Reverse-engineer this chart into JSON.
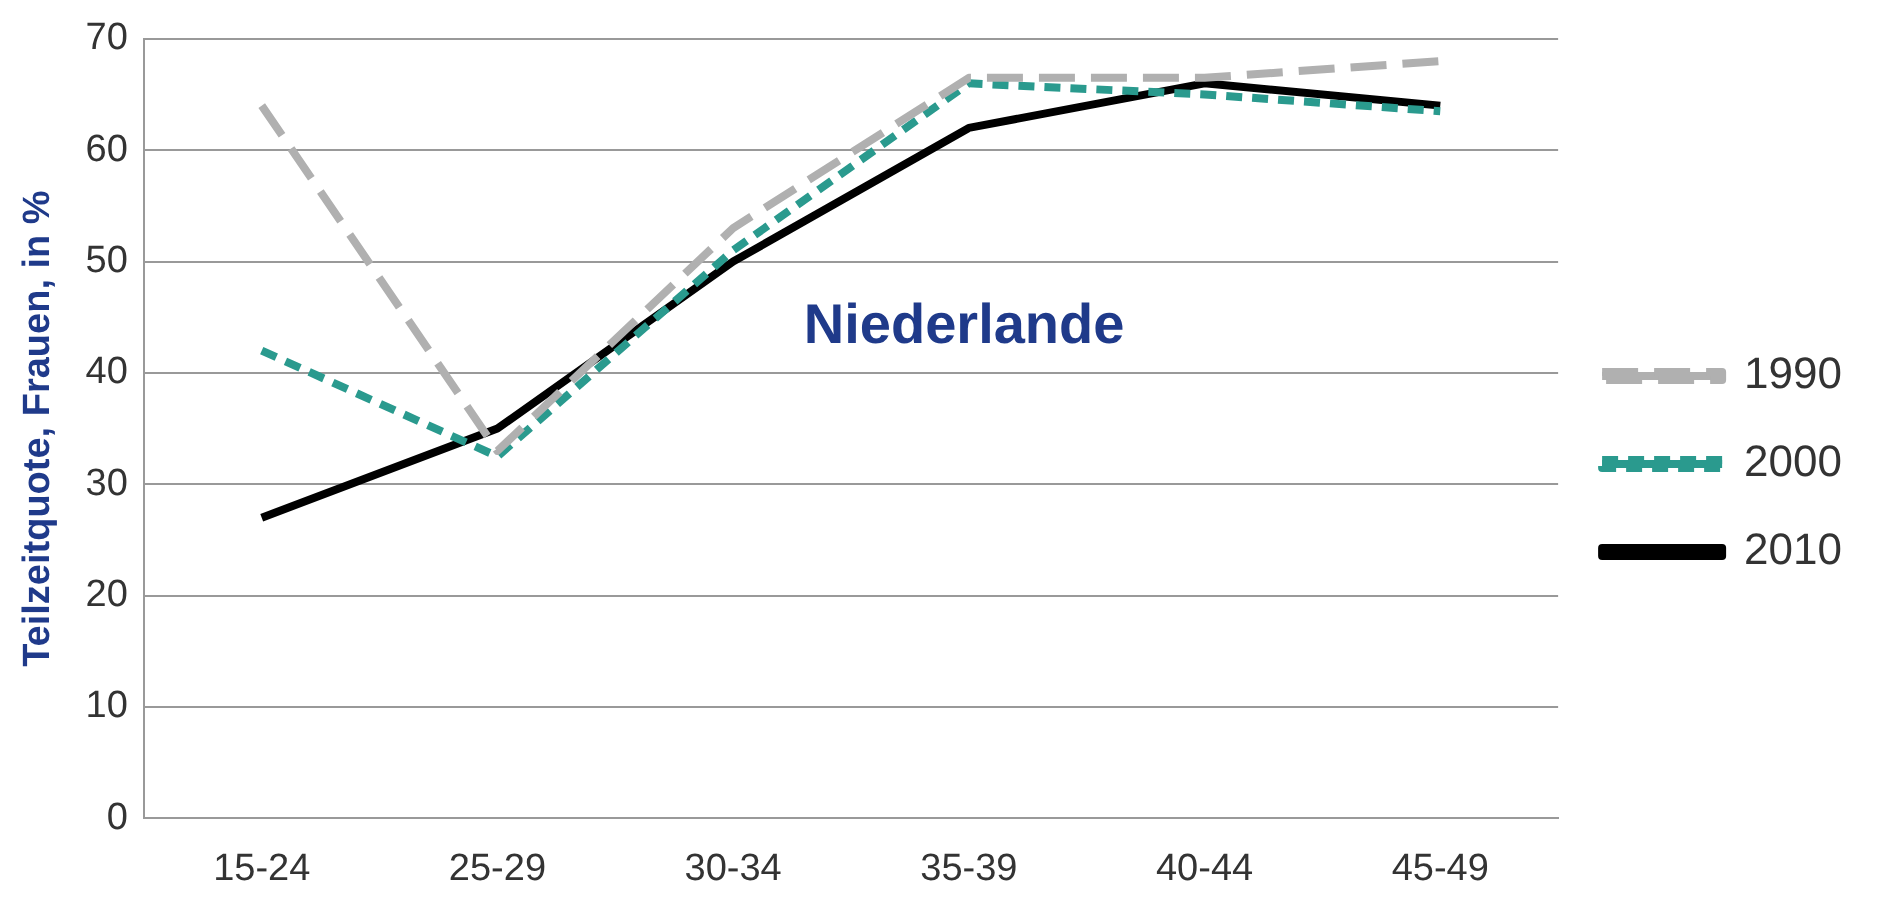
{
  "chart_data": {
    "type": "line",
    "ylabel": "Teilzeitquote, Frauen, in %",
    "categories": [
      "15-24",
      "25-29",
      "30-34",
      "35-39",
      "40-44",
      "45-49"
    ],
    "series": [
      {
        "name": "1990",
        "color": "#b0b0b0",
        "line_style": "dashed",
        "values": [
          64,
          33,
          53,
          66.5,
          66.5,
          68
        ]
      },
      {
        "name": "2000",
        "color": "#2a9a8e",
        "line_style": "dotted",
        "values": [
          42,
          32.5,
          51,
          66,
          65,
          63.5
        ]
      },
      {
        "name": "2010",
        "color": "#000000",
        "line_style": "solid",
        "values": [
          27,
          35,
          50,
          62,
          66,
          64
        ]
      }
    ],
    "ylim": [
      0,
      70
    ],
    "yticks": [
      0,
      10,
      20,
      30,
      40,
      50,
      60,
      70
    ],
    "grid": "y",
    "legend": "right",
    "marker": "none",
    "annotations": [
      "Niederlande"
    ]
  }
}
